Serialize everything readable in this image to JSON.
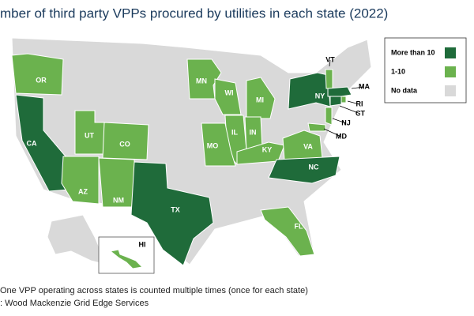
{
  "title": "mber of third party VPPs procured by utilities in each state (2022)",
  "legend": [
    {
      "label": "More than 10",
      "color": "#1f6b3a"
    },
    {
      "label": "1-10",
      "color": "#6bb24e"
    },
    {
      "label": "No data",
      "color": "#d9d9d9"
    }
  ],
  "states": [
    {
      "label": "OR",
      "level": 1
    },
    {
      "label": "CA",
      "level": 0
    },
    {
      "label": "UT",
      "level": 1
    },
    {
      "label": "CO",
      "level": 1
    },
    {
      "label": "AZ",
      "level": 1
    },
    {
      "label": "NM",
      "level": 1
    },
    {
      "label": "TX",
      "level": 0
    },
    {
      "label": "MN",
      "level": 1
    },
    {
      "label": "WI",
      "level": 1
    },
    {
      "label": "MI",
      "level": 1
    },
    {
      "label": "IL",
      "level": 1
    },
    {
      "label": "IN",
      "level": 1
    },
    {
      "label": "MO",
      "level": 1
    },
    {
      "label": "KY",
      "level": 1
    },
    {
      "label": "VA",
      "level": 1
    },
    {
      "label": "NC",
      "level": 0
    },
    {
      "label": "FL",
      "level": 1
    },
    {
      "label": "NY",
      "level": 0
    },
    {
      "label": "VT",
      "level": 1
    },
    {
      "label": "MA",
      "level": 0
    },
    {
      "label": "RI",
      "level": 1
    },
    {
      "label": "CT",
      "level": 0
    },
    {
      "label": "NJ",
      "level": 1
    },
    {
      "label": "MD",
      "level": 1
    },
    {
      "label": "HI",
      "level": 1
    }
  ],
  "notes": [
    "One VPP operating across states is counted multiple times (once for each state)",
    ": Wood Mackenzie Grid Edge Services"
  ]
}
